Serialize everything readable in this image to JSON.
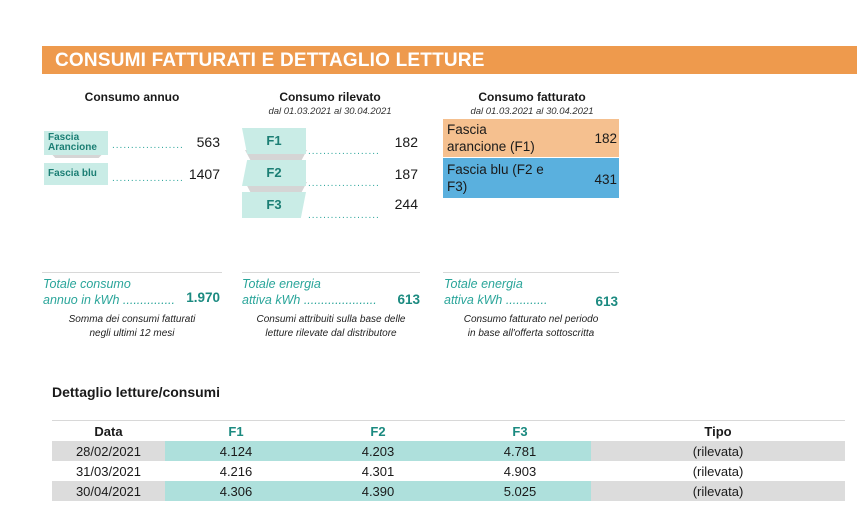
{
  "banner": {
    "title": "CONSUMI FATTURATI E DETTAGLIO LETTURE"
  },
  "annuo": {
    "title": "Consumo annuo",
    "items": [
      {
        "label": "Fascia Arancione",
        "value": "563"
      },
      {
        "label": "Fascia blu",
        "value": "1407"
      }
    ],
    "total_label_1": "Totale consumo",
    "total_label_2": "annuo in kWh ...............",
    "total_value": "1.970",
    "note_1": "Somma dei consumi fatturati",
    "note_2": "negli ultimi 12 mesi"
  },
  "rilevato": {
    "title": "Consumo rilevato",
    "period": "dal 01.03.2021 al 30.04.2021",
    "items": [
      {
        "label": "F1",
        "value": "182"
      },
      {
        "label": "F2",
        "value": "187"
      },
      {
        "label": "F3",
        "value": "244"
      }
    ],
    "total_label_1": "Totale energia",
    "total_label_2": "attiva kWh .....................",
    "total_value": "613",
    "note_1": "Consumi attribuiti sulla base delle",
    "note_2": "letture rilevate dal distributore"
  },
  "fatturato": {
    "title": "Consumo fatturato",
    "period": "dal 01.03.2021 al 30.04.2021",
    "items": [
      {
        "label_1": "Fascia",
        "label_2": "arancione (F1)",
        "value": "182",
        "color": "#f5c08f"
      },
      {
        "label_1": "Fascia blu (F2 e",
        "label_2": "F3)",
        "value": "431",
        "color": "#5ab0de"
      }
    ],
    "total_label_1": "Totale energia",
    "total_label_2": "attiva kWh ............",
    "total_value": "613",
    "note_1": "Consumo fatturato nel periodo",
    "note_2": "in base all'offerta sottoscritta"
  },
  "dettaglio": {
    "title": "Dettaglio letture/consumi",
    "headers": [
      "Data",
      "F1",
      "F2",
      "F3",
      "Tipo"
    ],
    "rows": [
      [
        "28/02/2021",
        "4.124",
        "4.203",
        "4.781",
        "(rilevata)"
      ],
      [
        "31/03/2021",
        "4.216",
        "4.301",
        "4.903",
        "(rilevata)"
      ],
      [
        "30/04/2021",
        "4.306",
        "4.390",
        "5.025",
        "(rilevata)"
      ]
    ]
  },
  "colors": {
    "accent": "#ee9a4d",
    "teal": "#2aa59a",
    "teal_light": "#c9ece6",
    "blue": "#5ab0de",
    "orange_light": "#f5c08f"
  }
}
